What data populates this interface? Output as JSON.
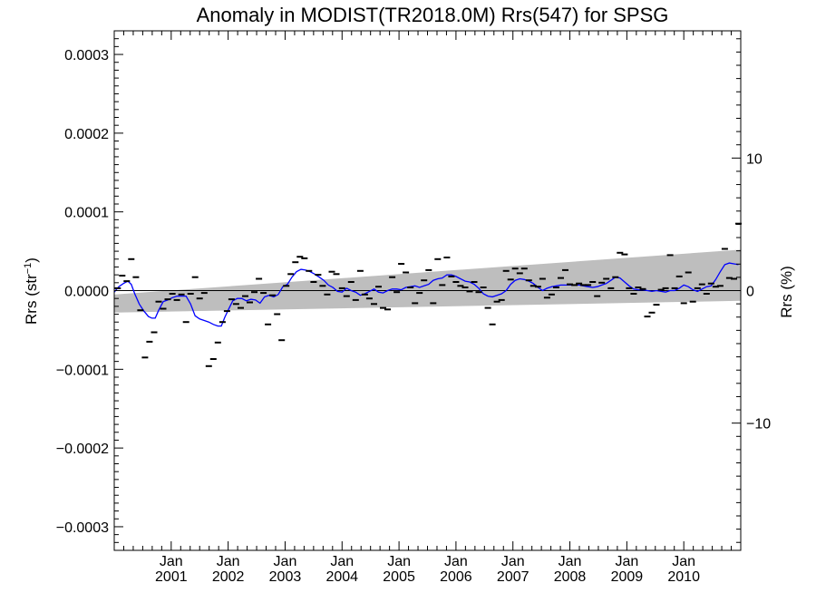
{
  "chart_data": {
    "type": "scatter",
    "title": "Anomaly in MODIST(TR2018.0M) Rrs(547) for SPSG",
    "ylabel": "Rrs (str",
    "ylabel_sup": "−1",
    "ylabel_close": ")",
    "y2label": "Rrs (%)",
    "xlim": [
      2000.0,
      2011.0
    ],
    "ylim": [
      -0.00033,
      0.00033
    ],
    "y2lim": [
      -19.6,
      19.6
    ],
    "grid": false,
    "legend": "none",
    "colors": {
      "smooth": "#0000ff",
      "band": "#bebebe",
      "points": "#000000",
      "zero": "#000000"
    },
    "x_ticks": [
      {
        "x": 2001.0,
        "month": "Jan",
        "year": "2001"
      },
      {
        "x": 2002.0,
        "month": "Jan",
        "year": "2002"
      },
      {
        "x": 2003.0,
        "month": "Jan",
        "year": "2003"
      },
      {
        "x": 2004.0,
        "month": "Jan",
        "year": "2004"
      },
      {
        "x": 2005.0,
        "month": "Jan",
        "year": "2005"
      },
      {
        "x": 2006.0,
        "month": "Jan",
        "year": "2006"
      },
      {
        "x": 2007.0,
        "month": "Jan",
        "year": "2007"
      },
      {
        "x": 2008.0,
        "month": "Jan",
        "year": "2008"
      },
      {
        "x": 2009.0,
        "month": "Jan",
        "year": "2009"
      },
      {
        "x": 2010.0,
        "month": "Jan",
        "year": "2010"
      }
    ],
    "y_ticks": [
      {
        "v": 0.0003,
        "label": "0.0003"
      },
      {
        "v": 0.0002,
        "label": "0.0002"
      },
      {
        "v": 0.0001,
        "label": "0.0001"
      },
      {
        "v": 0.0,
        "label": "0.0000"
      },
      {
        "v": -0.0001,
        "label": "−0.0001"
      },
      {
        "v": -0.0002,
        "label": "−0.0002"
      },
      {
        "v": -0.0003,
        "label": "−0.0003"
      }
    ],
    "y2_ticks": [
      {
        "v": 10,
        "label": "10"
      },
      {
        "v": 0,
        "label": "0"
      },
      {
        "v": -10,
        "label": "−10"
      }
    ],
    "band": {
      "x": [
        2000.0,
        2011.0
      ],
      "lower": [
        -2.8e-05,
        -1.3e-05
      ],
      "upper": [
        -5e-06,
        5.2e-05
      ]
    },
    "points": [
      [
        2000.06,
        3e-06
      ],
      [
        2000.14,
        1.9e-05
      ],
      [
        2000.22,
        1.2e-05
      ],
      [
        2000.3,
        4e-05
      ],
      [
        2000.38,
        1.7e-05
      ],
      [
        2000.46,
        -2.5e-05
      ],
      [
        2000.54,
        -8.5e-05
      ],
      [
        2000.62,
        -6.5e-05
      ],
      [
        2000.7,
        -5.3e-05
      ],
      [
        2000.78,
        -1.4e-05
      ],
      [
        2000.86,
        -2.3e-05
      ],
      [
        2000.94,
        -1.1e-05
      ],
      [
        2001.02,
        -4e-06
      ],
      [
        2001.1,
        -1.2e-05
      ],
      [
        2001.18,
        -5e-06
      ],
      [
        2001.26,
        -4e-05
      ],
      [
        2001.34,
        -4e-06
      ],
      [
        2001.42,
        1.7e-05
      ],
      [
        2001.5,
        -1e-05
      ],
      [
        2001.58,
        -3e-06
      ],
      [
        2001.66,
        -9.6e-05
      ],
      [
        2001.74,
        -8.7e-05
      ],
      [
        2001.82,
        -6.6e-05
      ],
      [
        2001.9,
        -4e-05
      ],
      [
        2001.98,
        -2.6e-05
      ],
      [
        2002.06,
        -1.1e-05
      ],
      [
        2002.14,
        -1.7e-05
      ],
      [
        2002.22,
        -2.2e-05
      ],
      [
        2002.3,
        -7e-06
      ],
      [
        2002.38,
        -1.5e-05
      ],
      [
        2002.46,
        -2e-06
      ],
      [
        2002.54,
        1.5e-05
      ],
      [
        2002.62,
        -3e-06
      ],
      [
        2002.7,
        -4.3e-05
      ],
      [
        2002.78,
        -6e-06
      ],
      [
        2002.86,
        -3e-05
      ],
      [
        2002.94,
        -6.3e-05
      ],
      [
        2003.02,
        6e-06
      ],
      [
        2003.1,
        2.1e-05
      ],
      [
        2003.18,
        3.6e-05
      ],
      [
        2003.26,
        4.3e-05
      ],
      [
        2003.34,
        4.1e-05
      ],
      [
        2003.42,
        2.5e-05
      ],
      [
        2003.5,
        1.1e-05
      ],
      [
        2003.58,
        2e-05
      ],
      [
        2003.66,
        6e-06
      ],
      [
        2003.74,
        -5e-06
      ],
      [
        2003.82,
        2.4e-05
      ],
      [
        2003.9,
        2.1e-05
      ],
      [
        2004.0,
        3e-06
      ],
      [
        2004.08,
        -7e-06
      ],
      [
        2004.16,
        1.1e-05
      ],
      [
        2004.24,
        -1.2e-05
      ],
      [
        2004.32,
        2.5e-05
      ],
      [
        2004.4,
        -5e-06
      ],
      [
        2004.48,
        -1e-05
      ],
      [
        2004.56,
        -1.7e-05
      ],
      [
        2004.64,
        5e-06
      ],
      [
        2004.72,
        -2.2e-05
      ],
      [
        2004.8,
        -2.4e-05
      ],
      [
        2004.88,
        1.7e-05
      ],
      [
        2004.96,
        -2e-06
      ],
      [
        2005.04,
        3.4e-05
      ],
      [
        2005.12,
        2.3e-05
      ],
      [
        2005.2,
        4e-06
      ],
      [
        2005.28,
        -1.6e-05
      ],
      [
        2005.36,
        -3e-06
      ],
      [
        2005.44,
        1.3e-05
      ],
      [
        2005.52,
        2.6e-05
      ],
      [
        2005.6,
        -1.6e-05
      ],
      [
        2005.68,
        4e-05
      ],
      [
        2005.76,
        7e-06
      ],
      [
        2005.84,
        4.2e-05
      ],
      [
        2005.92,
        1.8e-05
      ],
      [
        2006.0,
        1.1e-05
      ],
      [
        2006.08,
        6e-06
      ],
      [
        2006.16,
        4e-06
      ],
      [
        2006.24,
        -1e-06
      ],
      [
        2006.32,
        1.1e-05
      ],
      [
        2006.4,
        -2e-06
      ],
      [
        2006.48,
        4e-06
      ],
      [
        2006.56,
        -2.2e-05
      ],
      [
        2006.64,
        -4.3e-05
      ],
      [
        2006.72,
        -1.4e-05
      ],
      [
        2006.8,
        -1.2e-05
      ],
      [
        2006.88,
        2.5e-05
      ],
      [
        2006.96,
        1.4e-05
      ],
      [
        2007.04,
        2.8e-05
      ],
      [
        2007.12,
        2.2e-05
      ],
      [
        2007.2,
        2.8e-05
      ],
      [
        2007.28,
        1.3e-05
      ],
      [
        2007.36,
        6e-06
      ],
      [
        2007.44,
        5e-06
      ],
      [
        2007.52,
        1.5e-05
      ],
      [
        2007.6,
        -9e-06
      ],
      [
        2007.68,
        -5e-06
      ],
      [
        2007.76,
        4e-06
      ],
      [
        2007.84,
        1.6e-05
      ],
      [
        2007.92,
        2.6e-05
      ],
      [
        2008.0,
        8e-06
      ],
      [
        2008.08,
        7e-06
      ],
      [
        2008.16,
        9e-06
      ],
      [
        2008.24,
        7e-06
      ],
      [
        2008.32,
        7e-06
      ],
      [
        2008.4,
        1.1e-05
      ],
      [
        2008.48,
        -7e-06
      ],
      [
        2008.56,
        1e-05
      ],
      [
        2008.64,
        1.5e-05
      ],
      [
        2008.72,
        3e-06
      ],
      [
        2008.8,
        1.7e-05
      ],
      [
        2008.88,
        4.8e-05
      ],
      [
        2008.96,
        4.6e-05
      ],
      [
        2009.04,
        3e-06
      ],
      [
        2009.12,
        -4e-06
      ],
      [
        2009.2,
        4e-06
      ],
      [
        2009.28,
        2e-06
      ],
      [
        2009.36,
        -3.3e-05
      ],
      [
        2009.44,
        -2.8e-05
      ],
      [
        2009.52,
        -1.8e-05
      ],
      [
        2009.6,
        1e-06
      ],
      [
        2009.68,
        3e-06
      ],
      [
        2009.76,
        4.5e-05
      ],
      [
        2009.84,
        3e-06
      ],
      [
        2009.92,
        1.8e-05
      ],
      [
        2010.0,
        -1.6e-05
      ],
      [
        2010.08,
        2.3e-05
      ],
      [
        2010.16,
        -1.4e-05
      ],
      [
        2010.24,
        3e-06
      ],
      [
        2010.32,
        8e-06
      ],
      [
        2010.4,
        -4e-06
      ],
      [
        2010.48,
        9e-06
      ],
      [
        2010.56,
        5e-06
      ],
      [
        2010.64,
        6e-06
      ],
      [
        2010.72,
        5.3e-05
      ],
      [
        2010.8,
        1.6e-05
      ],
      [
        2010.88,
        1.5e-05
      ],
      [
        2010.96,
        8.5e-05
      ]
    ],
    "smooth_line": [
      [
        2000.0,
        -2e-06
      ],
      [
        2000.08,
        5e-06
      ],
      [
        2000.16,
        9e-06
      ],
      [
        2000.24,
        1.2e-05
      ],
      [
        2000.3,
        8e-06
      ],
      [
        2000.36,
        -4e-06
      ],
      [
        2000.44,
        -1.7e-05
      ],
      [
        2000.52,
        -2.6e-05
      ],
      [
        2000.6,
        -3.3e-05
      ],
      [
        2000.66,
        -3.5e-05
      ],
      [
        2000.72,
        -3.5e-05
      ],
      [
        2000.78,
        -2.5e-05
      ],
      [
        2000.86,
        -1.4e-05
      ],
      [
        2000.94,
        -1.2e-05
      ],
      [
        2001.02,
        -9e-06
      ],
      [
        2001.1,
        -7e-06
      ],
      [
        2001.18,
        -7e-06
      ],
      [
        2001.26,
        -7e-06
      ],
      [
        2001.34,
        -1.7e-05
      ],
      [
        2001.42,
        -3.2e-05
      ],
      [
        2001.5,
        -3.6e-05
      ],
      [
        2001.58,
        -3.8e-05
      ],
      [
        2001.66,
        -4e-05
      ],
      [
        2001.74,
        -4.3e-05
      ],
      [
        2001.82,
        -4.5e-05
      ],
      [
        2001.88,
        -4.5e-05
      ],
      [
        2001.94,
        -3.4e-05
      ],
      [
        2002.0,
        -2.5e-05
      ],
      [
        2002.08,
        -1.3e-05
      ],
      [
        2002.16,
        -1e-05
      ],
      [
        2002.24,
        -1e-05
      ],
      [
        2002.32,
        -1.3e-05
      ],
      [
        2002.4,
        -1.1e-05
      ],
      [
        2002.48,
        -1.2e-05
      ],
      [
        2002.56,
        -1.6e-05
      ],
      [
        2002.64,
        -8e-06
      ],
      [
        2002.72,
        -6e-06
      ],
      [
        2002.8,
        -8e-06
      ],
      [
        2002.88,
        -5e-06
      ],
      [
        2002.96,
        5e-06
      ],
      [
        2003.04,
        8e-06
      ],
      [
        2003.12,
        1.7e-05
      ],
      [
        2003.2,
        2.4e-05
      ],
      [
        2003.28,
        2.7e-05
      ],
      [
        2003.36,
        2.6e-05
      ],
      [
        2003.44,
        2.4e-05
      ],
      [
        2003.52,
        2.1e-05
      ],
      [
        2003.6,
        1.7e-05
      ],
      [
        2003.68,
        1.3e-05
      ],
      [
        2003.76,
        7e-06
      ],
      [
        2003.84,
        4e-06
      ],
      [
        2003.92,
        -1e-06
      ],
      [
        2004.0,
        -2e-06
      ],
      [
        2004.08,
        3e-06
      ],
      [
        2004.16,
        0.0
      ],
      [
        2004.24,
        -2e-06
      ],
      [
        2004.32,
        -6e-06
      ],
      [
        2004.4,
        -4e-06
      ],
      [
        2004.48,
        -1e-06
      ],
      [
        2004.56,
        2e-06
      ],
      [
        2004.64,
        -2e-06
      ],
      [
        2004.72,
        -3e-06
      ],
      [
        2004.8,
        0.0
      ],
      [
        2004.88,
        2e-06
      ],
      [
        2004.96,
        2e-06
      ],
      [
        2005.04,
        1e-06
      ],
      [
        2005.12,
        4e-06
      ],
      [
        2005.2,
        5e-06
      ],
      [
        2005.28,
        6e-06
      ],
      [
        2005.36,
        4e-06
      ],
      [
        2005.44,
        6e-06
      ],
      [
        2005.52,
        8e-06
      ],
      [
        2005.6,
        1.3e-05
      ],
      [
        2005.68,
        1.5e-05
      ],
      [
        2005.76,
        1.6e-05
      ],
      [
        2005.84,
        2e-05
      ],
      [
        2005.92,
        2e-05
      ],
      [
        2006.0,
        1.8e-05
      ],
      [
        2006.08,
        1.5e-05
      ],
      [
        2006.16,
        1.2e-05
      ],
      [
        2006.24,
        1.1e-05
      ],
      [
        2006.32,
        8e-06
      ],
      [
        2006.4,
        3e-06
      ],
      [
        2006.48,
        -4e-06
      ],
      [
        2006.56,
        -7e-06
      ],
      [
        2006.64,
        -8e-06
      ],
      [
        2006.72,
        -6e-06
      ],
      [
        2006.8,
        -4e-06
      ],
      [
        2006.88,
        0.0
      ],
      [
        2006.96,
        8e-06
      ],
      [
        2007.04,
        1.3e-05
      ],
      [
        2007.12,
        1.5e-05
      ],
      [
        2007.2,
        1.4e-05
      ],
      [
        2007.28,
        1.2e-05
      ],
      [
        2007.36,
        9e-06
      ],
      [
        2007.44,
        4e-06
      ],
      [
        2007.52,
        0.0
      ],
      [
        2007.6,
        3e-06
      ],
      [
        2007.68,
        5e-06
      ],
      [
        2007.76,
        6e-06
      ],
      [
        2007.84,
        7e-06
      ],
      [
        2007.92,
        7e-06
      ],
      [
        2008.0,
        7e-06
      ],
      [
        2008.08,
        7e-06
      ],
      [
        2008.16,
        7e-06
      ],
      [
        2008.24,
        6e-06
      ],
      [
        2008.32,
        5e-06
      ],
      [
        2008.4,
        4e-06
      ],
      [
        2008.48,
        5e-06
      ],
      [
        2008.56,
        7e-06
      ],
      [
        2008.64,
        9e-06
      ],
      [
        2008.72,
        1.3e-05
      ],
      [
        2008.8,
        1.7e-05
      ],
      [
        2008.88,
        1.6e-05
      ],
      [
        2008.96,
        1.1e-05
      ],
      [
        2009.04,
        6e-06
      ],
      [
        2009.12,
        2e-06
      ],
      [
        2009.2,
        1e-06
      ],
      [
        2009.28,
        1e-06
      ],
      [
        2009.36,
        0.0
      ],
      [
        2009.44,
        -1e-06
      ],
      [
        2009.52,
        0.0
      ],
      [
        2009.6,
        -1e-06
      ],
      [
        2009.68,
        -2e-06
      ],
      [
        2009.76,
        0.0
      ],
      [
        2009.84,
        0.0
      ],
      [
        2009.92,
        3e-06
      ],
      [
        2010.0,
        7e-06
      ],
      [
        2010.08,
        5e-06
      ],
      [
        2010.16,
        1e-06
      ],
      [
        2010.24,
        -1e-06
      ],
      [
        2010.32,
        2e-06
      ],
      [
        2010.4,
        5e-06
      ],
      [
        2010.48,
        6e-06
      ],
      [
        2010.56,
        1.4e-05
      ],
      [
        2010.64,
        2.4e-05
      ],
      [
        2010.72,
        3.3e-05
      ],
      [
        2010.8,
        3.5e-05
      ],
      [
        2010.88,
        3.4e-05
      ],
      [
        2010.96,
        3.3e-05
      ]
    ]
  }
}
